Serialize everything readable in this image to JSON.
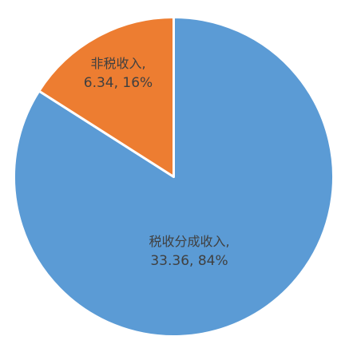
{
  "chart_data": {
    "type": "pie",
    "title": "",
    "slices": [
      {
        "label": "税收分成收入",
        "value": 33.36,
        "percent": 84,
        "color": "#5B9BD5"
      },
      {
        "label": "非税收入",
        "value": 6.34,
        "percent": 16,
        "color": "#ED7D31"
      }
    ],
    "data_labels": [
      {
        "name_line": "税收分成收入,",
        "value_line": "33.36, 84%"
      },
      {
        "name_line": "非税收入,",
        "value_line": "6.34, 16%"
      }
    ],
    "start_angle": "12 o'clock",
    "direction": "clockwise",
    "border_color": "#FFFFFF"
  }
}
